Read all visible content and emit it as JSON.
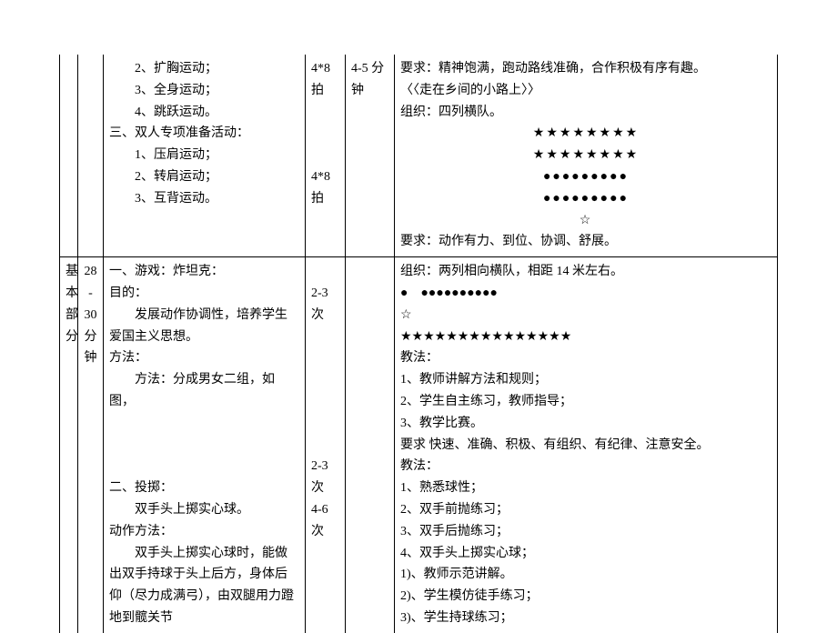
{
  "row1": {
    "activities": [
      "　　2、扩胸运动；",
      "　　3、全身运动；",
      "　　4、跳跃运动。",
      "三、双人专项准备活动：",
      "　　1、压肩运动；",
      "　　2、转肩运动；",
      "　　3、互背运动。"
    ],
    "reps": [
      "4*8 拍",
      "",
      "",
      "",
      "4*8 拍"
    ],
    "time": "4-5 分钟",
    "notes": [
      "要求：精神饱满，跑动路线准确，合作积极有序有趣。",
      "〈〈走在乡间的小路上〉〉",
      "组织：四列横队。"
    ],
    "pattern": {
      "r1": "★★★★★★★★",
      "r2": "★★★★★★★★",
      "r3": "●●●●●●●●●",
      "r4": "●●●●●●●●●",
      "r5": "☆"
    },
    "req2": "要求：动作有力、到位、协调、舒展。"
  },
  "row2": {
    "section": "基本部分",
    "time": "28 - 30 分钟",
    "content": {
      "h1": "一、游戏：炸坦克：",
      "p1": "目的：",
      "p2": "　　发展动作协调性，培养学生爱国主义思想。",
      "p3": "方法：",
      "p4": "　　方法：分成男女二组，如图，",
      "h2": "二、投掷：",
      "p5": "　　双手头上掷实心球。",
      "p6": "动作方法：",
      "p7": "　　双手头上掷实心球时，能做出双手持球于头上后方，身体后仰（尽力成满弓），由双腿用力蹬地到髋关节"
    },
    "reps": [
      "2-3 次",
      "",
      "",
      "",
      "",
      "",
      "",
      "",
      "2-3 次",
      "4-6 次"
    ],
    "notes": {
      "org": "组织：两列相向横队，相距 14 米左右。",
      "p1": "●　●●●●●●●●●●",
      "p2": "☆",
      "p3": "★★★★★★★★★★★★★★★",
      "t1": "教法：",
      "l1": "1、教师讲解方法和规则；",
      "l2": "2、学生自主练习，教师指导；",
      "l3": "3、教学比赛。",
      "req": "要求 快速、准确、积极、有组织、有纪律、注意安全。",
      "t2": "教法：",
      "m1": "1、熟悉球性；",
      "m2": "2、双手前抛练习；",
      "m3": "3、双手后抛练习；",
      "m4": "4、双手头上掷实心球；",
      "n1": "1)、教师示范讲解。",
      "n2": "2)、学生模仿徒手练习；",
      "n3": "3)、学生持球练习；"
    }
  }
}
